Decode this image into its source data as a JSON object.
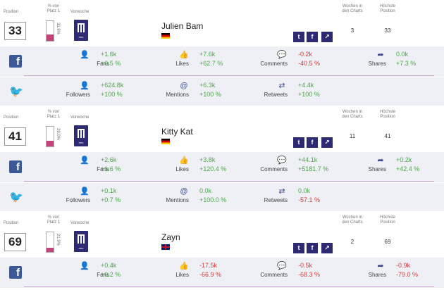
{
  "columns": {
    "position": "Position",
    "percent_of_first": "% von Platz 1",
    "previous_week": "Vorwoche",
    "weeks_in_charts": "Wochen in den Charts",
    "best_position": "Höchste Position"
  },
  "entries": [
    {
      "position": "33",
      "percent_of_first": "31.8%",
      "percent_value": 0.318,
      "name": "Julien Bam",
      "country_flag": "de",
      "weeks": "3",
      "best": "33",
      "facebook": {
        "fans": {
          "label": "Fans",
          "abs": "+1.6k",
          "rel": "+0.5 %"
        },
        "likes": {
          "label": "Likes",
          "abs": "+7.6k",
          "rel": "+62.7 %"
        },
        "comments": {
          "label": "Comments",
          "abs": "-0.2k",
          "rel": "-40.5 %"
        },
        "shares": {
          "label": "Shares",
          "abs": "0.0k",
          "rel": "+7.3 %"
        }
      },
      "twitter": {
        "followers": {
          "label": "Followers",
          "abs": "+624.8k",
          "rel": "+100 %"
        },
        "mentions": {
          "label": "Mentions",
          "abs": "+6.3k",
          "rel": "+100 %"
        },
        "retweets": {
          "label": "Retweets",
          "abs": "+4.4k",
          "rel": "+100 %"
        }
      }
    },
    {
      "position": "41",
      "percent_of_first": "29.0%",
      "percent_value": 0.29,
      "name": "Kitty Kat",
      "country_flag": "de",
      "weeks": "11",
      "best": "41",
      "facebook": {
        "fans": {
          "label": "Fans",
          "abs": "+2.6k",
          "rel": "+1.6 %"
        },
        "likes": {
          "label": "Likes",
          "abs": "+3.8k",
          "rel": "+120.4 %"
        },
        "comments": {
          "label": "Comments",
          "abs": "+44.1k",
          "rel": "+5181.7 %"
        },
        "shares": {
          "label": "Shares",
          "abs": "+0.2k",
          "rel": "+42.4 %"
        }
      },
      "twitter": {
        "followers": {
          "label": "Followers",
          "abs": "+0.1k",
          "rel": "+0.7 %"
        },
        "mentions": {
          "label": "Mentions",
          "abs": "0.0k",
          "rel": "+100.0 %"
        },
        "retweets": {
          "label": "Retweets",
          "abs": "0.0k",
          "rel": "-57.1 %"
        }
      }
    },
    {
      "position": "69",
      "percent_of_first": "21.9%",
      "percent_value": 0.219,
      "name": "Zayn",
      "country_flag": "uk",
      "weeks": "2",
      "best": "69",
      "facebook": {
        "fans": {
          "label": "Fans",
          "abs": "+0.4k",
          "rel": "+0.2 %"
        },
        "likes": {
          "label": "Likes",
          "abs": "-17.5k",
          "rel": "-66.9 %"
        },
        "comments": {
          "label": "Comments",
          "abs": "-0.5k",
          "rel": "-68.3 %"
        },
        "shares": {
          "label": "Shares",
          "abs": "-0.9k",
          "rel": "-79.0 %"
        }
      }
    }
  ],
  "previous_week_label": "neu",
  "icons": {
    "facebook": "facebook-icon",
    "twitter": "twitter-icon",
    "fans": "add-user-icon",
    "likes": "thumbs-up-icon",
    "comments": "speech-bubble-icon",
    "shares": "share-arrow-icon",
    "followers": "add-user-icon",
    "mentions": "at-sign-icon",
    "retweets": "retweet-icon",
    "chart": "chart-icon"
  },
  "colors": {
    "positive": "#4aa847",
    "negative": "#d83c3c",
    "brand_dark": "#2c2a73",
    "facebook": "#3b5998",
    "twitter": "#1da1f2",
    "bar_fill": "#c2447b"
  }
}
